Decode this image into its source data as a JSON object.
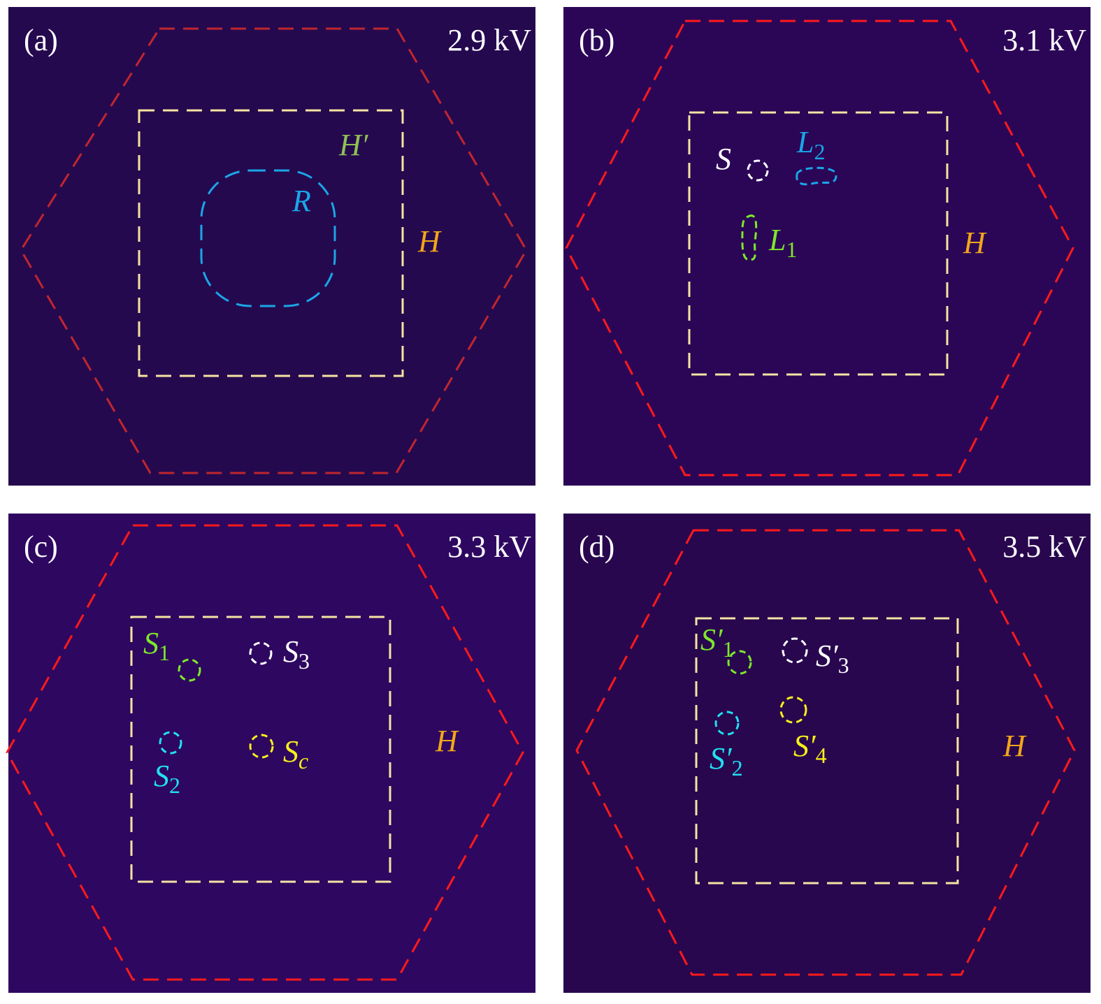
{
  "panels": [
    {
      "label": "(a)",
      "voltage": "2.9 kV",
      "annotations": [
        {
          "text": "H′",
          "color": "#8fc154"
        },
        {
          "text": "R",
          "color": "#1aa6e8"
        },
        {
          "text": "H",
          "color": "#f2a61a"
        }
      ]
    },
    {
      "label": "(b)",
      "voltage": "3.1 kV",
      "annotations": [
        {
          "text": "S",
          "color": "#ffffff"
        },
        {
          "text": "L",
          "sub": "2",
          "color": "#1aa6e8"
        },
        {
          "text": "L",
          "sub": "1",
          "color": "#7ee82a"
        },
        {
          "text": "H",
          "color": "#f2a61a"
        }
      ]
    },
    {
      "label": "(c)",
      "voltage": "3.3 kV",
      "annotations": [
        {
          "text": "S",
          "sub": "1",
          "color": "#7ee82a"
        },
        {
          "text": "S",
          "sub": "3",
          "color": "#ffffff"
        },
        {
          "text": "S",
          "sub": "2",
          "color": "#22e0f0"
        },
        {
          "text": "S",
          "sub": "c",
          "color": "#f7ef1a"
        },
        {
          "text": "H",
          "color": "#f2a61a"
        }
      ]
    },
    {
      "label": "(d)",
      "voltage": "3.5 kV",
      "annotations": [
        {
          "text": "S′",
          "sub": "1",
          "color": "#7ee82a"
        },
        {
          "text": "S′",
          "sub": "3",
          "color": "#ffffff"
        },
        {
          "text": "S′",
          "sub": "4",
          "color": "#f7ef1a"
        },
        {
          "text": "S′",
          "sub": "2",
          "color": "#22e0f0"
        },
        {
          "text": "H",
          "color": "#f2a61a"
        }
      ]
    }
  ]
}
